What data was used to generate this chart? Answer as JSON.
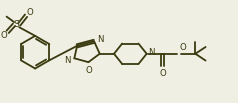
{
  "bg_color": "#f0efe3",
  "line_color": "#3a3a10",
  "lw": 1.3,
  "fs": 6.2,
  "xlim": [
    0,
    10.5
  ],
  "ylim": [
    -0.5,
    3.8
  ]
}
